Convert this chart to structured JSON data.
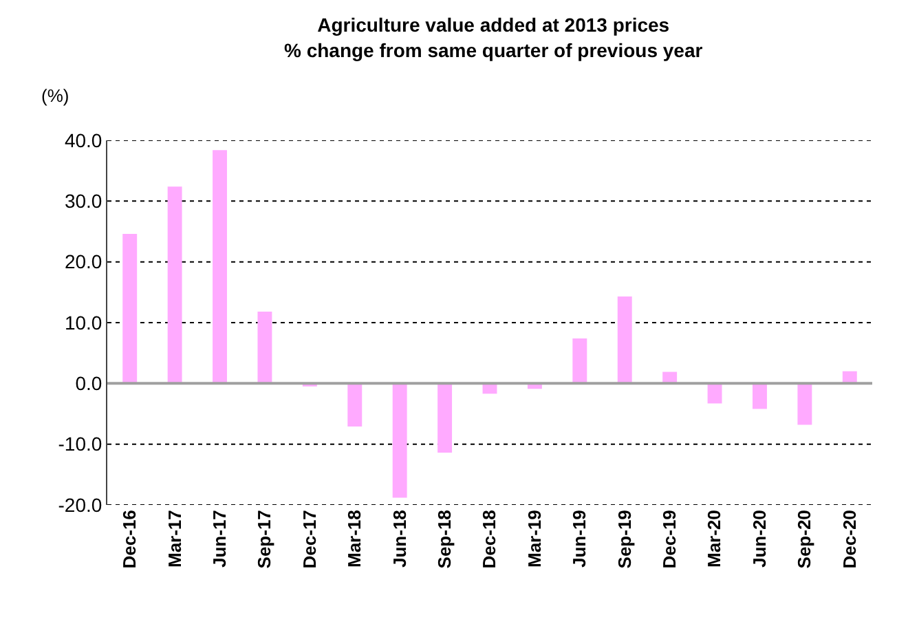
{
  "chart_data": {
    "type": "bar",
    "title": "Agriculture value added at 2013 prices\n% change from same quarter of previous year",
    "ylabel": "(%)",
    "categories": [
      "Dec-16",
      "Mar-17",
      "Jun-17",
      "Sep-17",
      "Dec-17",
      "Mar-18",
      "Jun-18",
      "Sep-18",
      "Dec-18",
      "Mar-19",
      "Jun-19",
      "Sep-19",
      "Dec-19",
      "Mar-20",
      "Jun-20",
      "Sep-20",
      "Dec-20"
    ],
    "values": [
      24.6,
      32.4,
      38.4,
      11.8,
      -0.5,
      -7.1,
      -18.8,
      -11.4,
      -1.7,
      -0.9,
      7.4,
      14.3,
      1.9,
      -3.3,
      -4.2,
      -6.8,
      2.0
    ],
    "color": "#ffaaff",
    "ylim": [
      -20,
      40
    ],
    "yticks": [
      {
        "value": -20,
        "label": "-20.0"
      },
      {
        "value": -10,
        "label": "-10.0"
      },
      {
        "value": 0,
        "label": "0.0"
      },
      {
        "value": 10,
        "label": "10.0"
      },
      {
        "value": 20,
        "label": "20.0"
      },
      {
        "value": 30,
        "label": "30.0"
      },
      {
        "value": 40,
        "label": "40.0"
      }
    ],
    "grid": "y"
  }
}
